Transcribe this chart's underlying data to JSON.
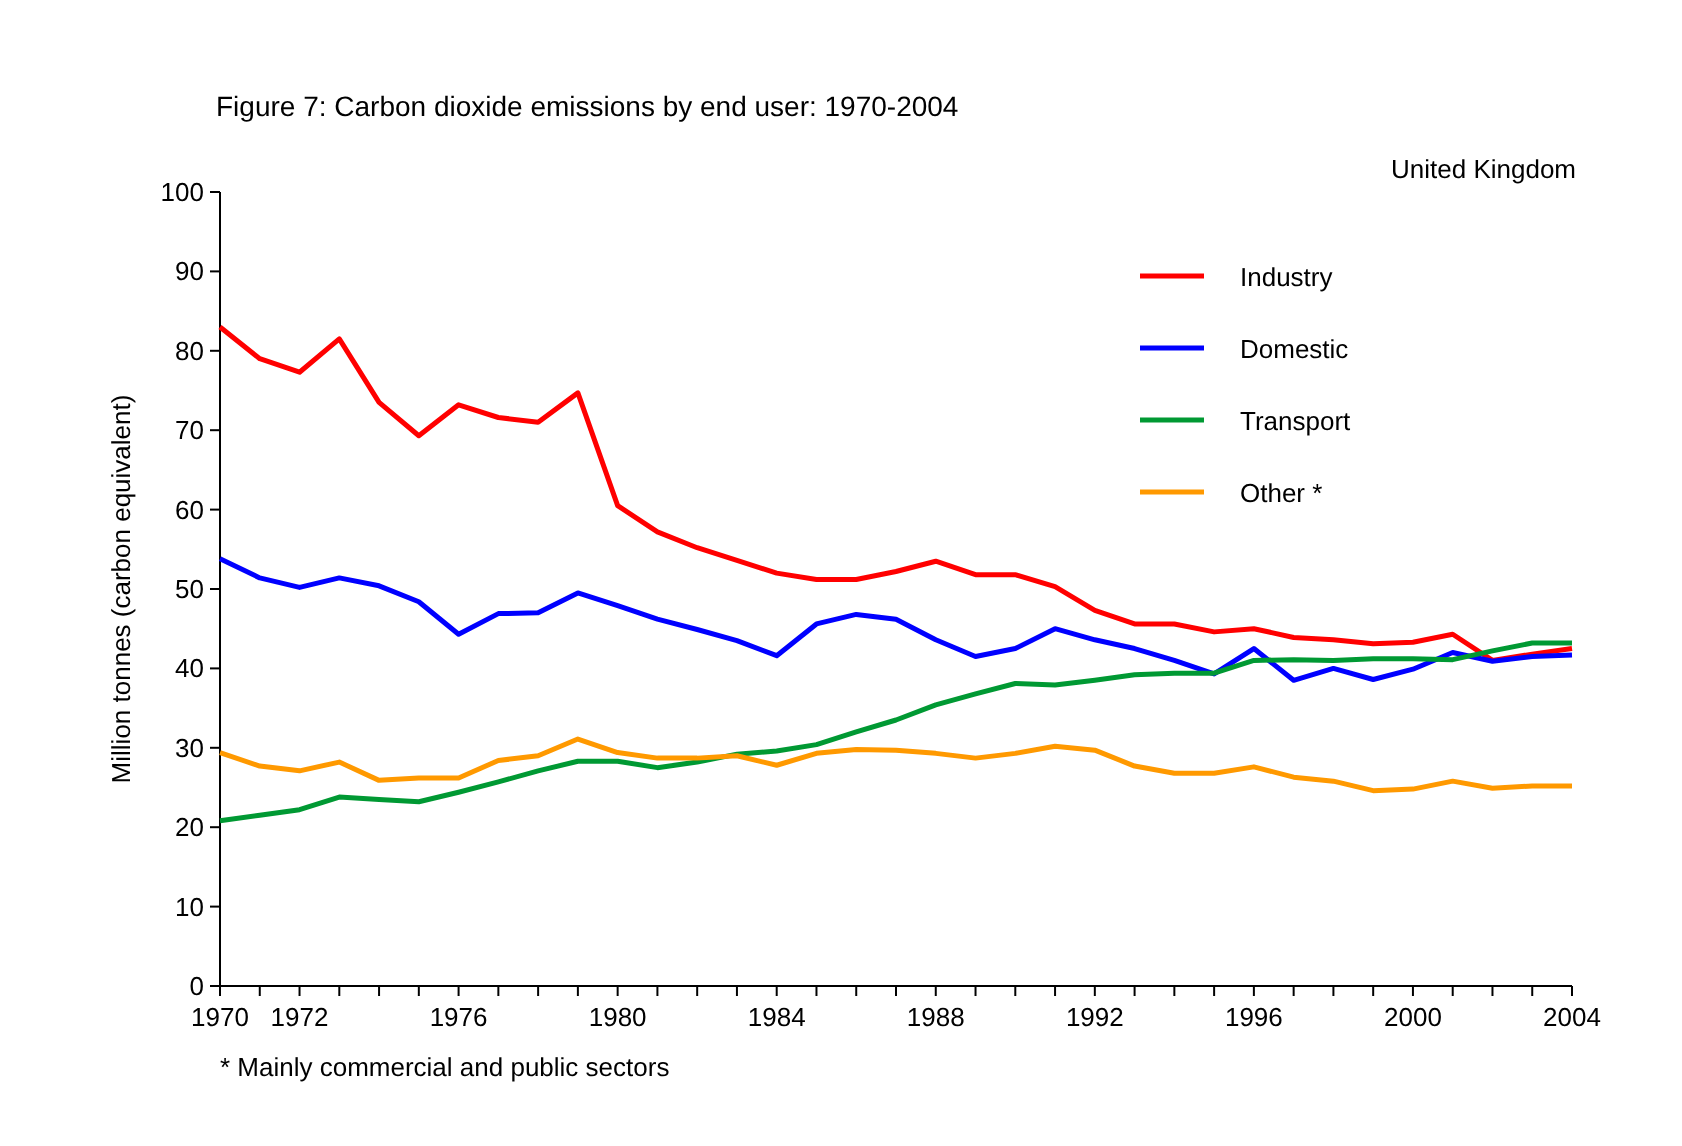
{
  "chart_data": {
    "type": "line",
    "title": "Figure 7: Carbon dioxide emissions by end user: 1970-2004",
    "ylabel": "Million tonnes (carbon equivalent)",
    "annotations": [
      "United Kingdom",
      "* Mainly commercial and public sectors"
    ],
    "x": [
      1970,
      1971,
      1972,
      1973,
      1974,
      1975,
      1976,
      1977,
      1978,
      1979,
      1980,
      1981,
      1982,
      1983,
      1984,
      1985,
      1986,
      1987,
      1988,
      1989,
      1990,
      1991,
      1992,
      1993,
      1994,
      1995,
      1996,
      1997,
      1998,
      1999,
      2000,
      2001,
      2002,
      2003,
      2004
    ],
    "series": [
      {
        "name": "Industry",
        "color": "#ff0000",
        "values": [
          83,
          79,
          77.3,
          81.5,
          73.5,
          69.3,
          73.2,
          71.6,
          71,
          74.7,
          60.5,
          57.2,
          55.2,
          53.6,
          52,
          51.2,
          51.2,
          52.2,
          53.5,
          51.8,
          51.8,
          50.3,
          47.3,
          45.6,
          45.6,
          44.6,
          45,
          43.9,
          43.6,
          43.1,
          43.3,
          44.3,
          41,
          41.8,
          42.5
        ]
      },
      {
        "name": "Domestic",
        "color": "#0000ff",
        "values": [
          53.8,
          51.4,
          50.2,
          51.4,
          50.4,
          48.4,
          44.3,
          46.9,
          47,
          49.5,
          47.9,
          46.2,
          44.9,
          43.5,
          41.6,
          45.6,
          46.8,
          46.2,
          43.6,
          41.5,
          42.5,
          45,
          43.6,
          42.5,
          41,
          39.3,
          42.5,
          38.5,
          40,
          38.6,
          39.9,
          42,
          40.9,
          41.5,
          41.7
        ]
      },
      {
        "name": "Transport",
        "color": "#009933",
        "values": [
          20.8,
          21.5,
          22.2,
          23.8,
          23.5,
          23.2,
          24.4,
          25.7,
          27.1,
          28.3,
          28.3,
          27.5,
          28.2,
          29.2,
          29.6,
          30.4,
          32,
          33.5,
          35.4,
          36.8,
          38.1,
          37.9,
          38.5,
          39.2,
          39.4,
          39.4,
          41,
          41.1,
          41,
          41.2,
          41.2,
          41.1,
          42.2,
          43.2,
          43.2
        ]
      },
      {
        "name": "Other *",
        "color": "#ff9900",
        "values": [
          29.4,
          27.7,
          27.1,
          28.2,
          25.9,
          26.2,
          26.2,
          28.4,
          29,
          31.1,
          29.4,
          28.7,
          28.7,
          29,
          27.8,
          29.3,
          29.8,
          29.7,
          29.3,
          28.7,
          29.3,
          30.2,
          29.7,
          27.7,
          26.8,
          26.8,
          27.6,
          26.3,
          25.8,
          24.6,
          24.8,
          25.8,
          24.9,
          25.2,
          25.2
        ]
      }
    ],
    "xlim": [
      1970,
      2004
    ],
    "xticks": [
      1970,
      {
        "value": 1971,
        "label": null
      },
      1972,
      {
        "value": 1973,
        "label": null
      },
      {
        "value": 1974,
        "label": null
      },
      {
        "value": 1975,
        "label": null
      },
      1976,
      {
        "value": 1977,
        "label": null
      },
      {
        "value": 1978,
        "label": null
      },
      {
        "value": 1979,
        "label": null
      },
      1980,
      {
        "value": 1981,
        "label": null
      },
      {
        "value": 1982,
        "label": null
      },
      {
        "value": 1983,
        "label": null
      },
      1984,
      {
        "value": 1985,
        "label": null
      },
      {
        "value": 1986,
        "label": null
      },
      {
        "value": 1987,
        "label": null
      },
      1988,
      {
        "value": 1989,
        "label": null
      },
      {
        "value": 1990,
        "label": null
      },
      {
        "value": 1991,
        "label": null
      },
      1992,
      {
        "value": 1993,
        "label": null
      },
      {
        "value": 1994,
        "label": null
      },
      {
        "value": 1995,
        "label": null
      },
      1996,
      {
        "value": 1997,
        "label": null
      },
      {
        "value": 1998,
        "label": null
      },
      {
        "value": 1999,
        "label": null
      },
      2000,
      {
        "value": 2001,
        "label": null
      },
      {
        "value": 2002,
        "label": null
      },
      {
        "value": 2003,
        "label": null
      },
      2004
    ],
    "ylim": [
      0,
      100
    ],
    "yticks": [
      0,
      10,
      20,
      30,
      40,
      50,
      60,
      70,
      80,
      90,
      100
    ],
    "grid": false,
    "legend": "top right",
    "line_style": "solid",
    "marker": "none"
  }
}
